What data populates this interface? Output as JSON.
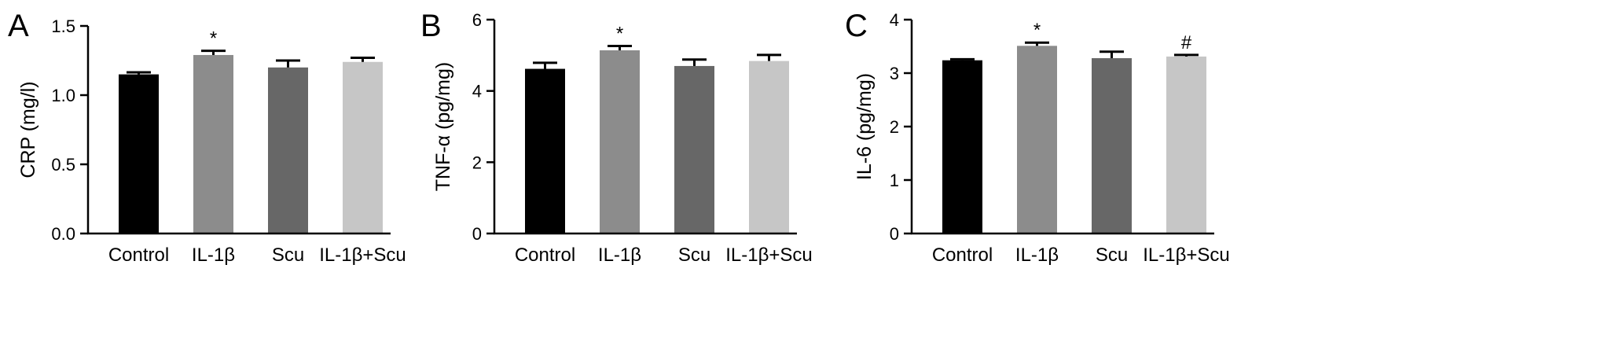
{
  "chart_data": [
    {
      "panel": "A",
      "type": "bar",
      "ylabel": "CRP (mg/l)",
      "categories": [
        "Control",
        "IL-1β",
        "Scu",
        "IL-1β+Scu"
      ],
      "values": [
        1.15,
        1.29,
        1.2,
        1.24
      ],
      "errors": [
        0.015,
        0.03,
        0.05,
        0.03
      ],
      "annotations": [
        "",
        "*",
        "",
        ""
      ],
      "ylim": [
        0,
        1.5
      ],
      "yticks": [
        0.0,
        0.5,
        1.0,
        1.5
      ],
      "ytick_labels": [
        "0.0",
        "0.5",
        "1.0",
        "1.5"
      ],
      "bar_colors": [
        "#000000",
        "#8c8c8c",
        "#676767",
        "#c6c6c6"
      ]
    },
    {
      "panel": "B",
      "type": "bar",
      "ylabel": "TNF-α (pg/mg)",
      "categories": [
        "Control",
        "IL-1β",
        "Scu",
        "IL-1β+Scu"
      ],
      "values": [
        4.62,
        5.14,
        4.7,
        4.84
      ],
      "errors": [
        0.17,
        0.12,
        0.18,
        0.17
      ],
      "annotations": [
        "",
        "*",
        "",
        ""
      ],
      "ylim": [
        0,
        6
      ],
      "yticks": [
        0,
        2,
        4,
        6
      ],
      "ytick_labels": [
        "0",
        "2",
        "4",
        "6"
      ],
      "bar_colors": [
        "#000000",
        "#8c8c8c",
        "#676767",
        "#c6c6c6"
      ]
    },
    {
      "panel": "C",
      "type": "bar",
      "ylabel": "IL-6 (pg/mg)",
      "categories": [
        "Control",
        "IL-1β",
        "Scu",
        "IL-1β+Scu"
      ],
      "values": [
        3.24,
        3.51,
        3.28,
        3.31
      ],
      "errors": [
        0.02,
        0.06,
        0.12,
        0.03
      ],
      "annotations": [
        "",
        "*",
        "",
        "#"
      ],
      "ylim": [
        0,
        4
      ],
      "yticks": [
        0,
        1,
        2,
        3,
        4
      ],
      "ytick_labels": [
        "0",
        "1",
        "2",
        "3",
        "4"
      ],
      "bar_colors": [
        "#000000",
        "#8c8c8c",
        "#676767",
        "#c6c6c6"
      ]
    }
  ]
}
